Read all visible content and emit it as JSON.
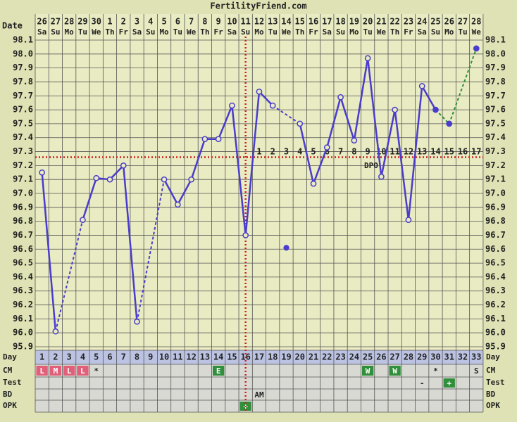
{
  "title": "FertilityFriend.com",
  "chart_data": {
    "type": "line",
    "categories": [
      1,
      2,
      3,
      4,
      5,
      6,
      7,
      8,
      9,
      10,
      11,
      12,
      13,
      14,
      15,
      16,
      17,
      18,
      19,
      20,
      21,
      22,
      23,
      24,
      25,
      26,
      27,
      28,
      29,
      30,
      31,
      32,
      33
    ],
    "dates": [
      26,
      27,
      28,
      29,
      30,
      1,
      2,
      3,
      4,
      5,
      6,
      7,
      8,
      9,
      10,
      11,
      12,
      13,
      14,
      15,
      16,
      17,
      18,
      19,
      20,
      21,
      22,
      23,
      24,
      25,
      26,
      27,
      28
    ],
    "weekdays": [
      "Sa",
      "Su",
      "Mo",
      "Tu",
      "We",
      "Th",
      "Fr",
      "Sa",
      "Su",
      "Mo",
      "Tu",
      "We",
      "Th",
      "Fr",
      "Sa",
      "Su",
      "Mo",
      "Tu",
      "We",
      "Th",
      "Fr",
      "Sa",
      "Su",
      "Mo",
      "Tu",
      "We",
      "Th",
      "Fr",
      "Sa",
      "Su",
      "Mo",
      "Tu",
      "We"
    ],
    "values": [
      97.15,
      96.01,
      null,
      96.81,
      97.11,
      97.1,
      97.2,
      96.08,
      null,
      97.1,
      96.92,
      97.1,
      97.39,
      97.39,
      97.63,
      96.7,
      97.73,
      97.63,
      null,
      97.5,
      97.07,
      97.33,
      97.69,
      97.38,
      97.97,
      97.12,
      97.6,
      96.81,
      97.77,
      97.6,
      97.5,
      null,
      98.04
    ],
    "discarded": [
      null,
      null,
      null,
      null,
      null,
      null,
      null,
      null,
      null,
      null,
      null,
      null,
      null,
      null,
      null,
      null,
      null,
      null,
      96.61,
      null,
      null,
      null,
      null,
      null,
      null,
      null,
      null,
      null,
      null,
      null,
      null,
      null,
      null
    ],
    "color": "#4a3ccc",
    "projection_color": "#2f8f3a",
    "projection_start_day": 30,
    "dpo": [
      null,
      null,
      null,
      null,
      null,
      null,
      null,
      null,
      null,
      null,
      null,
      null,
      null,
      null,
      null,
      null,
      1,
      2,
      3,
      4,
      5,
      6,
      7,
      8,
      9,
      10,
      11,
      12,
      13,
      14,
      15,
      16,
      17
    ],
    "dpo_label": "DPO",
    "coverline": 97.26,
    "ovulation_day": 16,
    "line_marker_color": "#cc2222",
    "ylim": [
      95.9,
      98.1
    ],
    "yticks": [
      95.9,
      {
        "value": 96,
        "label": "96.0"
      },
      96.1,
      96.2,
      96.3,
      96.4,
      96.5,
      96.6,
      96.7,
      96.8,
      96.9,
      {
        "value": 97,
        "label": "97.0"
      },
      97.1,
      97.2,
      97.3,
      97.4,
      97.5,
      97.6,
      97.7,
      97.8,
      97.9,
      {
        "value": 98,
        "label": "98.0"
      },
      98.1
    ],
    "row_labels": {
      "date": "Date",
      "day": "Day",
      "cm": "CM",
      "test": "Test",
      "bd": "BD",
      "opk": "OPK"
    },
    "cm": [
      "L",
      "M",
      "L",
      "L",
      "*",
      null,
      null,
      null,
      null,
      null,
      null,
      null,
      null,
      "E",
      null,
      null,
      null,
      null,
      null,
      null,
      null,
      null,
      null,
      null,
      "W",
      null,
      "W",
      null,
      null,
      "*",
      null,
      null,
      "S"
    ],
    "cm_fill": [
      "#e0607a",
      "#e0607a",
      "#e0607a",
      "#e0607a",
      null,
      null,
      null,
      null,
      null,
      null,
      null,
      null,
      null,
      "#2f8f3a",
      null,
      null,
      null,
      null,
      null,
      null,
      null,
      null,
      null,
      null,
      "#2f8f3a",
      null,
      "#2f8f3a",
      null,
      null,
      null,
      null,
      null,
      null
    ],
    "test": [
      null,
      null,
      null,
      null,
      null,
      null,
      null,
      null,
      null,
      null,
      null,
      null,
      null,
      null,
      null,
      null,
      null,
      null,
      null,
      null,
      null,
      null,
      null,
      null,
      null,
      null,
      null,
      null,
      "-",
      null,
      "+",
      null,
      null
    ],
    "test_fill": [
      null,
      null,
      null,
      null,
      null,
      null,
      null,
      null,
      null,
      null,
      null,
      null,
      null,
      null,
      null,
      null,
      null,
      null,
      null,
      null,
      null,
      null,
      null,
      null,
      null,
      null,
      null,
      null,
      null,
      null,
      "#2f8f3a",
      null,
      null
    ],
    "bd": [
      null,
      null,
      null,
      null,
      null,
      null,
      null,
      null,
      null,
      null,
      null,
      null,
      null,
      null,
      null,
      null,
      "AM",
      null,
      null,
      null,
      null,
      null,
      null,
      null,
      null,
      null,
      null,
      null,
      null,
      null,
      null,
      null,
      null
    ],
    "opk": [
      null,
      null,
      null,
      null,
      null,
      null,
      null,
      null,
      null,
      null,
      null,
      null,
      null,
      null,
      null,
      "+",
      null,
      null,
      null,
      null,
      null,
      null,
      null,
      null,
      null,
      null,
      null,
      null,
      null,
      null,
      null,
      null,
      null
    ],
    "opk_fill": [
      null,
      null,
      null,
      null,
      null,
      null,
      null,
      null,
      null,
      null,
      null,
      null,
      null,
      null,
      null,
      "#2f8f3a",
      null,
      null,
      null,
      null,
      null,
      null,
      null,
      null,
      null,
      null,
      null,
      null,
      null,
      null,
      null,
      null,
      null
    ]
  }
}
